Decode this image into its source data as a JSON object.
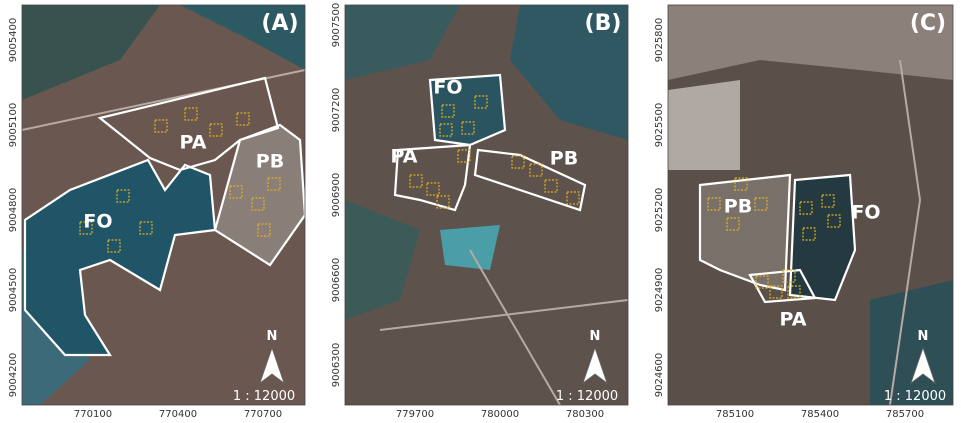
{
  "panels": [
    {
      "label": "(A)",
      "regions": [
        "PA",
        "PB",
        "FO"
      ],
      "xticks": [
        "770100",
        "770400",
        "770700"
      ],
      "yticks": [
        "9005400",
        "9005100",
        "9004800",
        "9004500",
        "9004200"
      ],
      "north": "N",
      "scale": "1 : 12000"
    },
    {
      "label": "(B)",
      "regions": [
        "FO",
        "PA",
        "PB"
      ],
      "xticks": [
        "779700",
        "780000",
        "780300"
      ],
      "yticks": [
        "9007500",
        "9007200",
        "9006900",
        "9006600",
        "9006300"
      ],
      "north": "N",
      "scale": "1 : 12000"
    },
    {
      "label": "(C)",
      "regions": [
        "PB",
        "FO",
        "PA"
      ],
      "xticks": [
        "785100",
        "785400",
        "785700"
      ],
      "yticks": [
        "9025800",
        "9025500",
        "9025200",
        "9024900",
        "9024600"
      ],
      "north": "N",
      "scale": "1 : 12000"
    }
  ]
}
